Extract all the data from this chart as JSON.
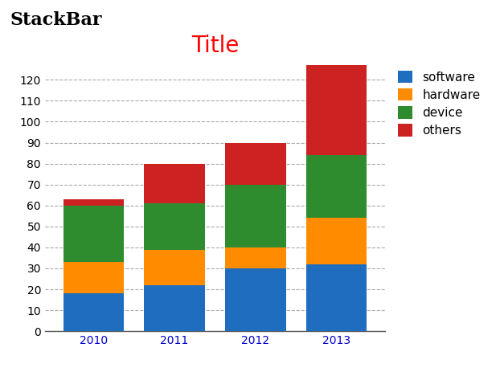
{
  "years": [
    "2010",
    "2011",
    "2012",
    "2013"
  ],
  "software": [
    18,
    22,
    30,
    32
  ],
  "hardware": [
    15,
    17,
    10,
    22
  ],
  "device": [
    27,
    22,
    30,
    30
  ],
  "others": [
    3,
    19,
    20,
    43
  ],
  "colors": {
    "software": "#1f6dbf",
    "hardware": "#ff8c00",
    "device": "#2e8b2e",
    "others": "#cc2222"
  },
  "title": "Title",
  "title_color": "#ff0000",
  "page_title": "StackBar",
  "ylim": [
    0,
    130
  ],
  "yticks": [
    0,
    10,
    20,
    30,
    40,
    50,
    60,
    70,
    80,
    90,
    100,
    110,
    120
  ],
  "grid_color": "#aaaaaa",
  "xlabel_color": "#0000cc",
  "bar_width": 0.75,
  "bg_color": "#ffffff",
  "title_fontsize": 20,
  "page_title_fontsize": 16,
  "tick_fontsize": 10,
  "legend_fontsize": 11
}
